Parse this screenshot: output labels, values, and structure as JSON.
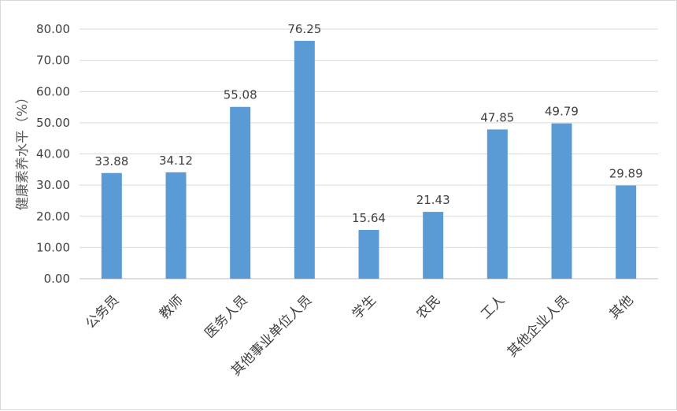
{
  "chart_data": {
    "type": "bar",
    "title": "",
    "xlabel": "",
    "ylabel": "健康素养水平（%）",
    "categories": [
      "公务员",
      "教师",
      "医务人员",
      "其他事业单位人员",
      "学生",
      "农民",
      "工人",
      "其他企业人员",
      "其他"
    ],
    "values": [
      33.88,
      34.12,
      55.08,
      76.25,
      15.64,
      21.43,
      47.85,
      49.79,
      29.89
    ],
    "value_labels": [
      "33.88",
      "34.12",
      "55.08",
      "76.25",
      "15.64",
      "21.43",
      "47.85",
      "49.79",
      "29.89"
    ],
    "ylim": [
      0,
      80
    ],
    "yticks": [
      0,
      10,
      20,
      30,
      40,
      50,
      60,
      70,
      80
    ],
    "ytick_labels": [
      "0.00",
      "10.00",
      "20.00",
      "30.00",
      "40.00",
      "50.00",
      "60.00",
      "70.00",
      "80.00"
    ],
    "grid": true,
    "legend": "none",
    "bar_color": "#5B9BD5",
    "grid_color": "#D9D9D9"
  }
}
